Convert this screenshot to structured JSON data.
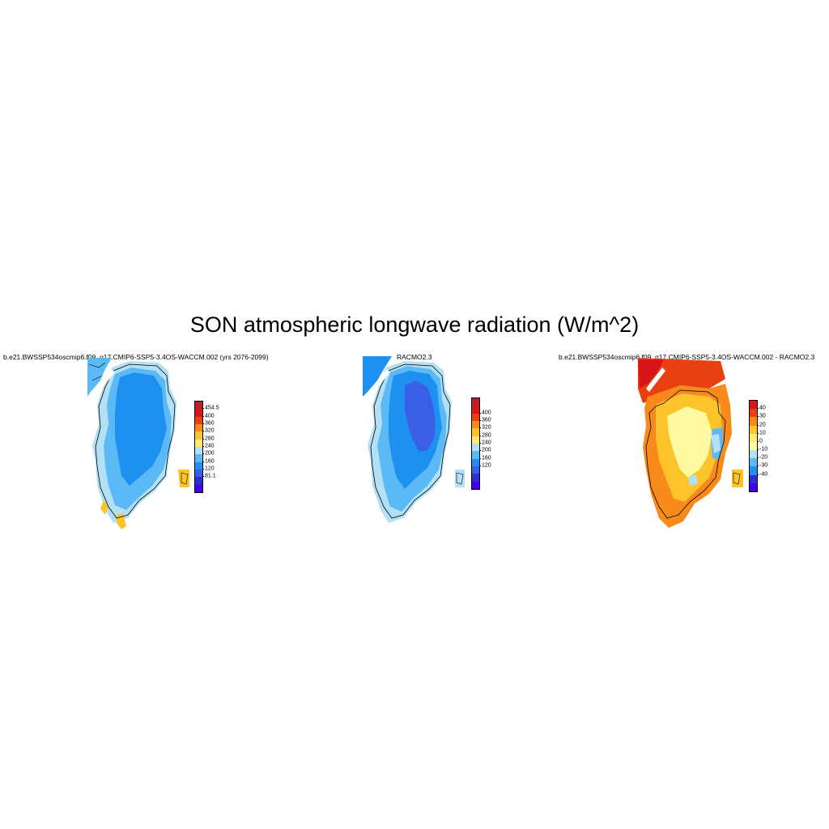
{
  "title": "SON atmospheric longwave radiation (W/m^2)",
  "panels": [
    {
      "title": "b.e21.BWSSP534oscmip6.f09_g17.CMIP6-SSP5-3.4OS-WACCM.002 (yrs 2076-2099)",
      "colorbar": {
        "colors": [
          "#4400ee",
          "#2d2fd1",
          "#3a5fe6",
          "#1e90f0",
          "#5bbaf5",
          "#b4e0f5",
          "#ffeb70",
          "#fcc42a",
          "#f78a1a",
          "#e84010",
          "#d8151a",
          "#b8202a"
        ],
        "labels": [
          "81.1",
          "120",
          "160",
          "200",
          "240",
          "280",
          "320",
          "360",
          "400",
          "454.5"
        ]
      }
    },
    {
      "title": "RACMO2.3",
      "colorbar": {
        "colors": [
          "#4400ee",
          "#2d2fd1",
          "#3a5fe6",
          "#1e90f0",
          "#5bbaf5",
          "#b4e0f5",
          "#ffeb70",
          "#fcc42a",
          "#f78a1a",
          "#e84010",
          "#d8151a",
          "#b8202a"
        ],
        "labels": [
          "120",
          "160",
          "200",
          "240",
          "280",
          "320",
          "360",
          "400"
        ]
      }
    },
    {
      "title": "b.e21.BWSSP534oscmip6.f09_g17.CMIP6-SSP5-3.4OS-WACCM.002 - RACMO2.3",
      "colorbar": {
        "colors": [
          "#4400ee",
          "#2d2fd1",
          "#1e90f0",
          "#5bbaf5",
          "#b4e0f5",
          "#fffaa0",
          "#ffeb70",
          "#fcc42a",
          "#f78a1a",
          "#e84010",
          "#d8151a"
        ],
        "labels": [
          "-40",
          "-30",
          "-20",
          "-10",
          "0",
          "10",
          "20",
          "30",
          "40"
        ]
      }
    }
  ]
}
